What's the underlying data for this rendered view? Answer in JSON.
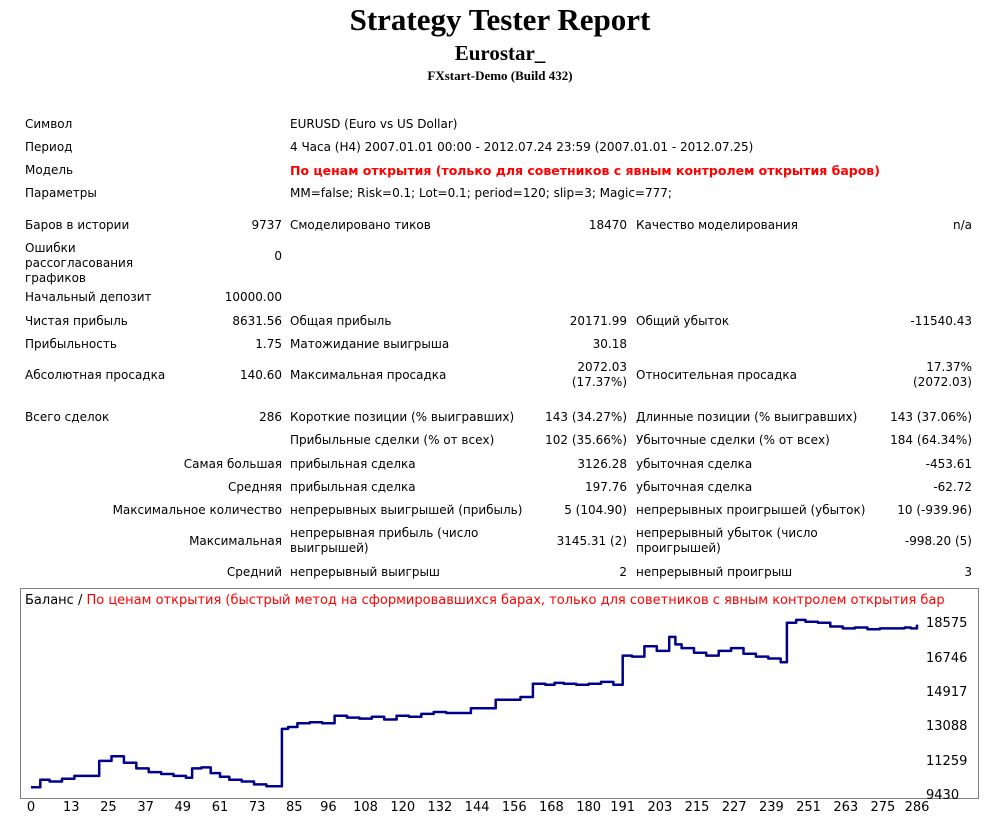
{
  "header": {
    "title": "Strategy Tester Report",
    "expert": "Eurostar_",
    "server": "FXstart-Demo (Build 432)"
  },
  "info": [
    {
      "label": "Символ",
      "value": "EURUSD (Euro vs US Dollar)"
    },
    {
      "label": "Период",
      "value": "4 Часа (H4) 2007.01.01 00:00 - 2012.07.24 23:59 (2007.01.01 - 2012.07.25)"
    },
    {
      "label": "Модель",
      "value": "По ценам открытия (только для советников с явным контролем открытия баров)"
    },
    {
      "label": "Параметры",
      "value": "MM=false; Risk=0.1; Lot=0.1; period=120; slip=3; Magic=777;"
    }
  ],
  "stats": {
    "bars_label": "Баров в истории",
    "bars": "9737",
    "ticks_label": "Смоделировано тиков",
    "ticks": "18470",
    "quality_label": "Качество моделирования",
    "quality": "n/a",
    "errors_label": "Ошибки рассогласования графиков",
    "errors": "0",
    "deposit_label": "Начальный депозит",
    "deposit": "10000.00",
    "net_label": "Чистая прибыль",
    "net": "8631.56",
    "gross_profit_label": "Общая прибыль",
    "gross_profit": "20171.99",
    "gross_loss_label": "Общий убыток",
    "gross_loss": "-11540.43",
    "pf_label": "Прибыльность",
    "pf": "1.75",
    "payoff_label": "Матожидание выигрыша",
    "payoff": "30.18",
    "abs_dd_label": "Абсолютная просадка",
    "abs_dd": "140.60",
    "max_dd_label": "Максимальная просадка",
    "max_dd": "2072.03",
    "max_dd_pct": "(17.37%)",
    "rel_dd_label": "Относительная просадка",
    "rel_dd": "17.37%",
    "rel_dd_val": "(2072.03)",
    "trades_label": "Всего сделок",
    "trades": "286",
    "short_label": "Короткие позиции (% выигравших)",
    "short": "143 (34.27%)",
    "long_label": "Длинные позиции (% выигравших)",
    "long": "143 (37.06%)",
    "win_trades_label": "Прибыльные сделки (% от всех)",
    "win_trades": "102 (35.66%)",
    "loss_trades_label": "Убыточные сделки (% от всех)",
    "loss_trades": "184 (64.34%)",
    "largest_label": "Самая большая",
    "largest_win_label": "прибыльная сделка",
    "largest_win": "3126.28",
    "largest_loss_label": "убыточная сделка",
    "largest_loss": "-453.61",
    "avg_label": "Средняя",
    "avg_win_label": "прибыльная сделка",
    "avg_win": "197.76",
    "avg_loss_label": "убыточная сделка",
    "avg_loss": "-62.72",
    "maxcount_label": "Максимальное количество",
    "cons_wins_label": "непрерывных выигрышей (прибыль)",
    "cons_wins": "5 (104.90)",
    "cons_losses_label": "непрерывных проигрышей (убыток)",
    "cons_losses": "10 (-939.96)",
    "max_label": "Максимальная",
    "cons_profit_label": "непрерывная прибыль (число выигрышей)",
    "cons_profit": "3145.31 (2)",
    "cons_loss_label": "непрерывный убыток (число проигрышей)",
    "cons_loss": "-998.20 (5)",
    "avgcons_label": "Средний",
    "avg_cons_win_label": "непрерывный выигрыш",
    "avg_cons_win": "2",
    "avg_cons_loss_label": "непрерывный проигрыш",
    "avg_cons_loss": "3"
  },
  "chart_data": {
    "type": "line",
    "title_prefix": "Баланс / ",
    "title_mode": "По ценам открытия (быстрый метод на сформировавшихся барах, только для советников с явным контролем открытия бар",
    "line_color": "#00008b",
    "xlim": [
      0,
      286
    ],
    "ylim": [
      9430,
      19489
    ],
    "x_ticks": [
      0,
      13,
      25,
      37,
      49,
      61,
      73,
      85,
      96,
      108,
      120,
      132,
      144,
      156,
      168,
      180,
      191,
      203,
      215,
      227,
      239,
      251,
      263,
      275,
      286
    ],
    "y_ticks": [
      9430,
      11259,
      13088,
      14917,
      16746,
      18575
    ],
    "x": [
      0,
      3,
      6,
      10,
      14,
      18,
      22,
      26,
      30,
      34,
      38,
      42,
      46,
      50,
      52,
      55,
      58,
      61,
      64,
      68,
      72,
      76,
      80,
      81,
      83,
      86,
      90,
      94,
      98,
      102,
      106,
      110,
      114,
      118,
      122,
      126,
      130,
      134,
      138,
      142,
      146,
      150,
      154,
      158,
      162,
      166,
      169,
      172,
      176,
      180,
      184,
      188,
      191,
      194,
      198,
      202,
      206,
      208,
      210,
      214,
      218,
      222,
      226,
      230,
      234,
      238,
      242,
      244,
      247,
      250,
      254,
      258,
      262,
      266,
      270,
      274,
      278,
      282,
      284,
      286
    ],
    "y": [
      9900,
      10300,
      10200,
      10350,
      10500,
      10500,
      11300,
      11550,
      11200,
      10900,
      10700,
      10600,
      10500,
      10400,
      10900,
      10950,
      10650,
      10450,
      10300,
      10200,
      10050,
      9950,
      9950,
      13000,
      13100,
      13300,
      13350,
      13300,
      13700,
      13600,
      13550,
      13650,
      13500,
      13700,
      13650,
      13800,
      13900,
      13850,
      13850,
      14100,
      14100,
      14550,
      14550,
      14700,
      15400,
      15350,
      15450,
      15400,
      15350,
      15400,
      15500,
      15350,
      16900,
      16850,
      17400,
      17150,
      17900,
      17500,
      17300,
      17050,
      16900,
      17150,
      17300,
      17000,
      16850,
      16750,
      16550,
      18650,
      18800,
      18700,
      18650,
      18450,
      18350,
      18400,
      18300,
      18350,
      18350,
      18400,
      18350,
      18550
    ]
  }
}
